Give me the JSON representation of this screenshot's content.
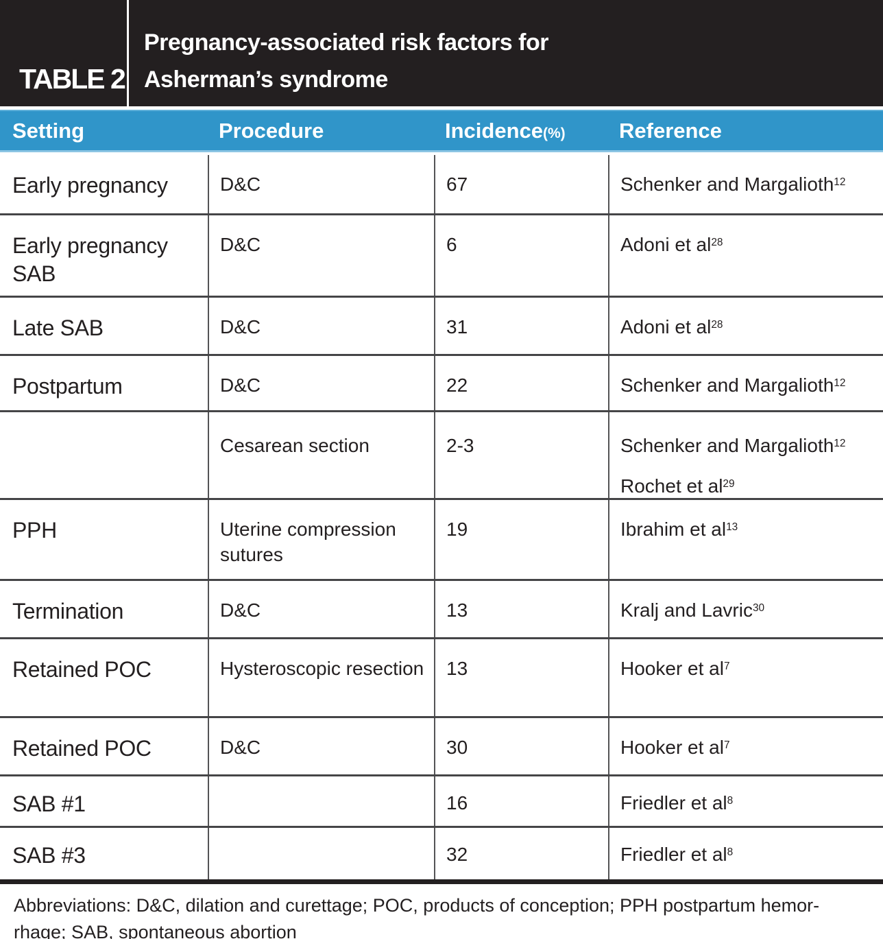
{
  "header": {
    "label": "TABLE 2",
    "title_line1": "Pregnancy-associated risk factors for",
    "title_line2": "Asherman’s syndrome"
  },
  "columns": {
    "setting": "Setting",
    "procedure": "Procedure",
    "incidence": "Incidence",
    "incidence_unit": "(%)",
    "reference": "Reference"
  },
  "rows": [
    {
      "setting": "Early pregnancy",
      "procedure": "D&C",
      "incidence": "67",
      "ref1": "Schenker and Margalioth",
      "ref1_sup": "12"
    },
    {
      "setting": "Early pregnancy SAB",
      "procedure": "D&C",
      "incidence": "6",
      "ref1": "Adoni et al",
      "ref1_sup": "28"
    },
    {
      "setting": "Late SAB",
      "procedure": "D&C",
      "incidence": "31",
      "ref1": "Adoni et al",
      "ref1_sup": "28"
    },
    {
      "setting": "Postpartum",
      "procedure": "D&C",
      "incidence": "22",
      "ref1": "Schenker and Margalioth",
      "ref1_sup": "12"
    },
    {
      "setting": "",
      "procedure": "Cesarean section",
      "incidence": "2-3",
      "ref1": "Schenker and Margalioth",
      "ref1_sup": "12",
      "ref2": "Rochet et al",
      "ref2_sup": "29"
    },
    {
      "setting": "PPH",
      "procedure": "Uterine compression sutures",
      "incidence": "19",
      "ref1": "Ibrahim et al",
      "ref1_sup": "13"
    },
    {
      "setting": "Termination",
      "procedure": "D&C",
      "incidence": "13",
      "ref1": "Kralj and Lavric",
      "ref1_sup": "30"
    },
    {
      "setting": "Retained POC",
      "procedure": "Hysteroscopic resection",
      "incidence": "13",
      "ref1": "Hooker et al",
      "ref1_sup": "7"
    },
    {
      "setting": "Retained POC",
      "procedure": "D&C",
      "incidence": "30",
      "ref1": "Hooker et al",
      "ref1_sup": "7"
    },
    {
      "setting": "SAB #1",
      "procedure": "",
      "incidence": "16",
      "ref1": "Friedler et al",
      "ref1_sup": "8"
    },
    {
      "setting": "SAB #3",
      "procedure": "",
      "incidence": "32",
      "ref1": "Friedler et al",
      "ref1_sup": "8"
    }
  ],
  "footnote": {
    "line1": "Abbreviations: D&C, dilation and curettage; POC, products of conception; PPH postpartum hemor-",
    "line2": "rhage; SAB, spontaneous abortion"
  },
  "colors": {
    "banner_bg": "#231f20",
    "banner_text": "#ffffff",
    "column_header_bg": "#3095c9",
    "column_header_text": "#ffffff",
    "body_text": "#231f20",
    "row_divider": "#454547",
    "column_divider": "#535355",
    "bottom_rule": "#231f20"
  }
}
